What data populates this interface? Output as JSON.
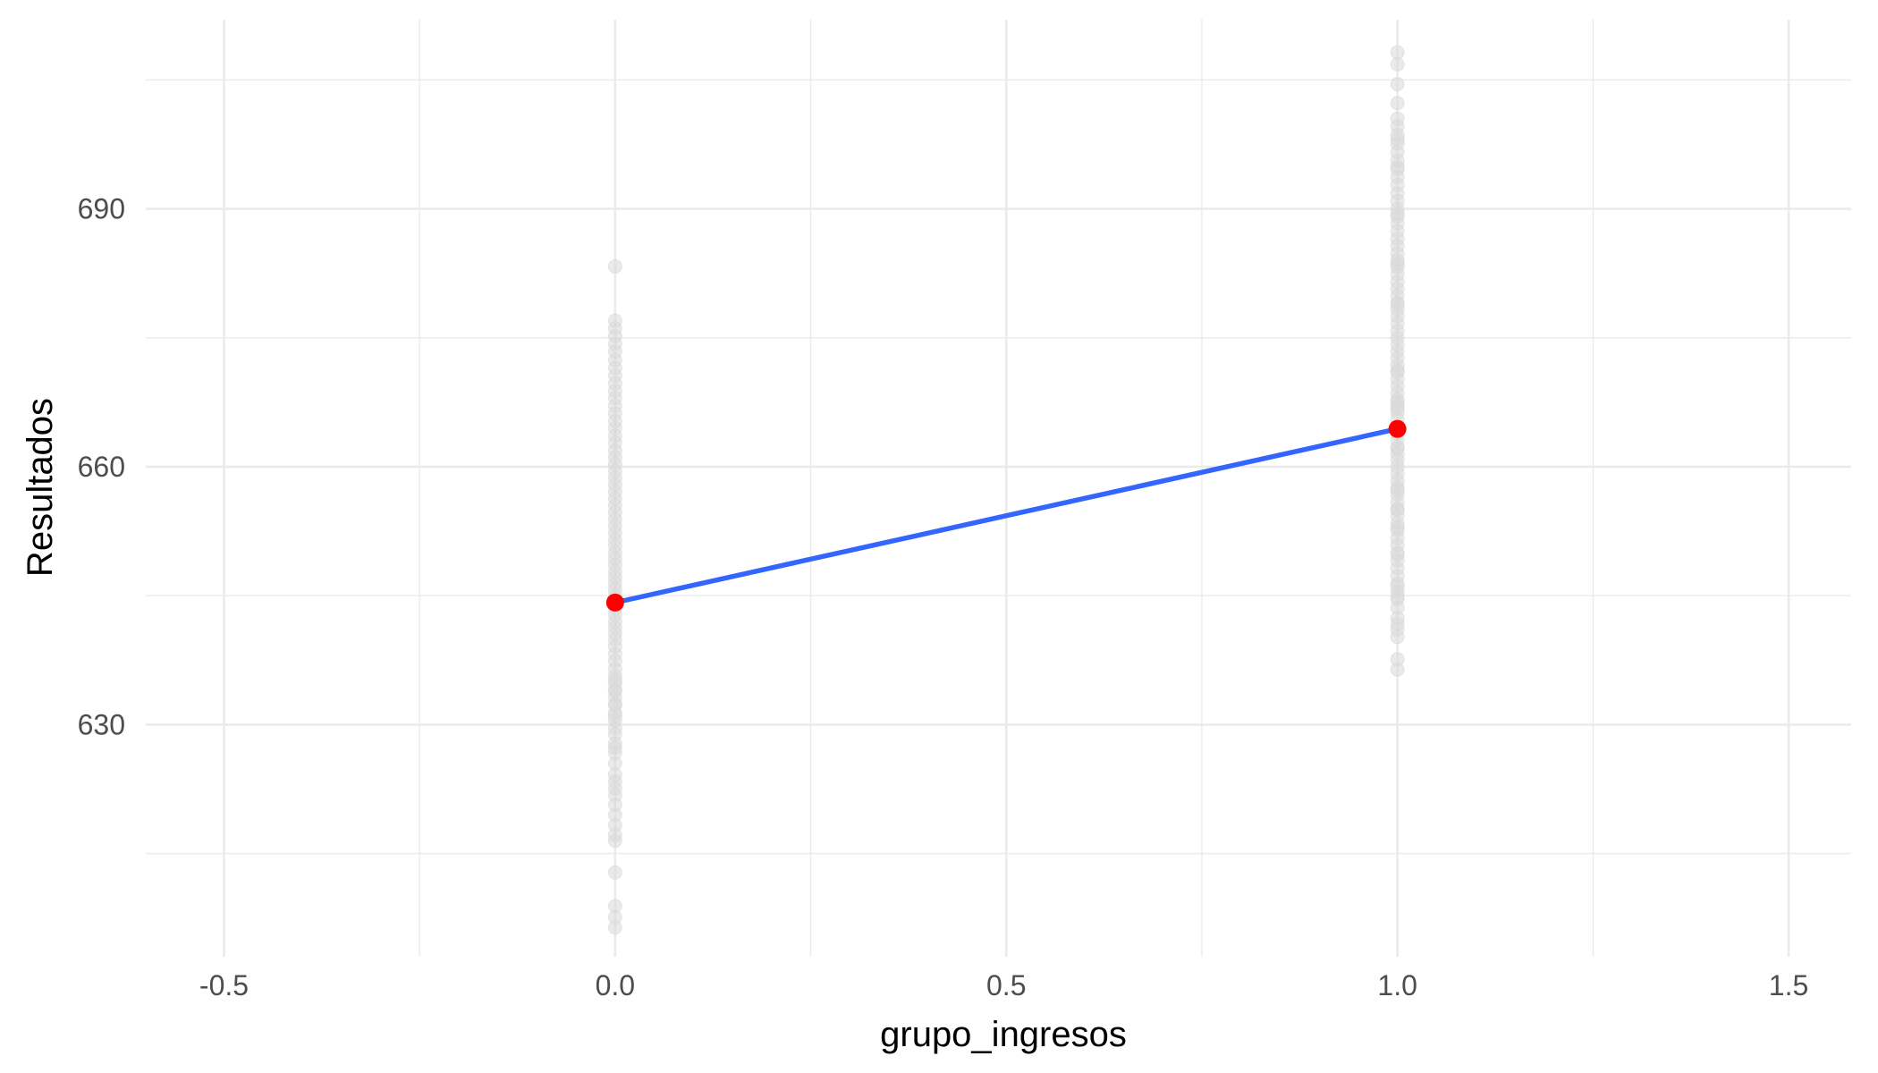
{
  "chart_data": {
    "type": "scatter",
    "title": "",
    "xlabel": "grupo_ingresos",
    "ylabel": "Resultados",
    "xlim": [
      -0.6,
      1.58
    ],
    "ylim": [
      603,
      712
    ],
    "x_ticks": [
      -0.5,
      0.0,
      0.5,
      1.0,
      1.5
    ],
    "x_tick_labels": [
      "-0.5",
      "0.0",
      "0.5",
      "1.0",
      "1.5"
    ],
    "y_ticks": [
      630,
      660,
      690
    ],
    "y_tick_labels": [
      "630",
      "660",
      "690"
    ],
    "grid": true,
    "legend": "none",
    "colors": {
      "points": "#d9d9d9",
      "line": "#3366ff",
      "means": "#ff0000",
      "grid": "#ebebeb"
    },
    "series": [
      {
        "kind": "scatter",
        "x": [
          0,
          0,
          0,
          0,
          0,
          0,
          0,
          0,
          0,
          0,
          0,
          0,
          0,
          0,
          0,
          0,
          0,
          0,
          0,
          0,
          0,
          0,
          0,
          0,
          0,
          0,
          0,
          0,
          0,
          0,
          0,
          0,
          0,
          0,
          0,
          0,
          0,
          0,
          0,
          0,
          0,
          0,
          0,
          0,
          0,
          0,
          0,
          0,
          0,
          0,
          0,
          0,
          0,
          0,
          0,
          0,
          0,
          0,
          0,
          0,
          0,
          0,
          0,
          0,
          0,
          0,
          0,
          0,
          0,
          0,
          0,
          0,
          0,
          0,
          0,
          0,
          0,
          0,
          0,
          0,
          0,
          0,
          1,
          1,
          1,
          1,
          1,
          1,
          1,
          1,
          1,
          1,
          1,
          1,
          1,
          1,
          1,
          1,
          1,
          1,
          1,
          1,
          1,
          1,
          1,
          1,
          1,
          1,
          1,
          1,
          1,
          1,
          1,
          1,
          1,
          1,
          1,
          1,
          1,
          1,
          1,
          1,
          1,
          1,
          1,
          1,
          1,
          1,
          1,
          1,
          1,
          1,
          1,
          1,
          1,
          1,
          1,
          1,
          1,
          1,
          1,
          1,
          1,
          1,
          1,
          1,
          1,
          1,
          1,
          1,
          1,
          1,
          1,
          1,
          1,
          1,
          1,
          1,
          1,
          1,
          1,
          1,
          1,
          1,
          1,
          1,
          1,
          1,
          1,
          1,
          1,
          1,
          1,
          1,
          1
        ],
        "y": [
          606.4,
          607.6,
          608.9,
          612.8,
          616.5,
          617.2,
          618.3,
          619.5,
          620.7,
          621.8,
          622.6,
          623.4,
          624.2,
          625.5,
          626.7,
          627.8,
          628.9,
          629.6,
          630.5,
          631.4,
          632.3,
          633.2,
          634.0,
          634.8,
          635.7,
          636.5,
          637.4,
          638.2,
          639.1,
          639.9,
          640.6,
          641.3,
          642.0,
          642.8,
          643.5,
          644.2,
          645.0,
          645.7,
          646.4,
          647.1,
          647.8,
          648.6,
          649.3,
          650.0,
          650.8,
          651.5,
          652.3,
          653.1,
          653.9,
          654.7,
          655.5,
          656.3,
          657.1,
          657.9,
          658.7,
          659.5,
          660.3,
          661.1,
          661.9,
          662.8,
          663.6,
          664.5,
          665.3,
          666.2,
          667.1,
          668.0,
          668.8,
          669.7,
          670.6,
          671.5,
          672.4,
          673.4,
          674.3,
          675.2,
          676.1,
          677.0,
          683.3,
          627.3,
          631.0,
          632.4,
          633.9,
          635.2,
          637.6,
          640.2,
          641.1,
          642.4,
          643.6,
          644.6,
          645.5,
          646.4,
          647.3,
          648.2,
          649.1,
          650.0,
          650.9,
          651.7,
          652.6,
          653.4,
          654.3,
          655.1,
          655.9,
          656.8,
          657.6,
          658.4,
          659.2,
          660.0,
          660.8,
          661.5,
          662.3,
          663.1,
          663.9,
          664.7,
          665.5,
          666.3,
          667.1,
          667.8,
          668.6,
          669.4,
          670.2,
          671.0,
          671.8,
          672.6,
          673.4,
          674.2,
          675.0,
          675.8,
          676.7,
          677.5,
          678.3,
          679.1,
          679.9,
          680.7,
          681.5,
          682.4,
          683.2,
          684.0,
          684.8,
          685.7,
          686.5,
          687.4,
          688.3,
          689.1,
          690.0,
          690.9,
          691.8,
          692.8,
          693.7,
          694.6,
          695.6,
          696.6,
          697.6,
          698.6,
          699.6,
          700.5,
          702.3,
          704.5,
          706.8,
          708.2,
          698.1,
          694.9,
          689.4,
          683.6,
          678.9,
          671.2,
          666.8,
          657.3,
          652.9,
          646.1,
          641.7,
          636.4,
          649.8,
          662.1,
          655.0,
          644.9,
          667.5
        ]
      },
      {
        "kind": "line",
        "x": [
          0,
          1
        ],
        "y": [
          644.2,
          664.4
        ]
      },
      {
        "kind": "mean-points",
        "x": [
          0,
          1
        ],
        "y": [
          644.2,
          664.4
        ]
      }
    ]
  }
}
